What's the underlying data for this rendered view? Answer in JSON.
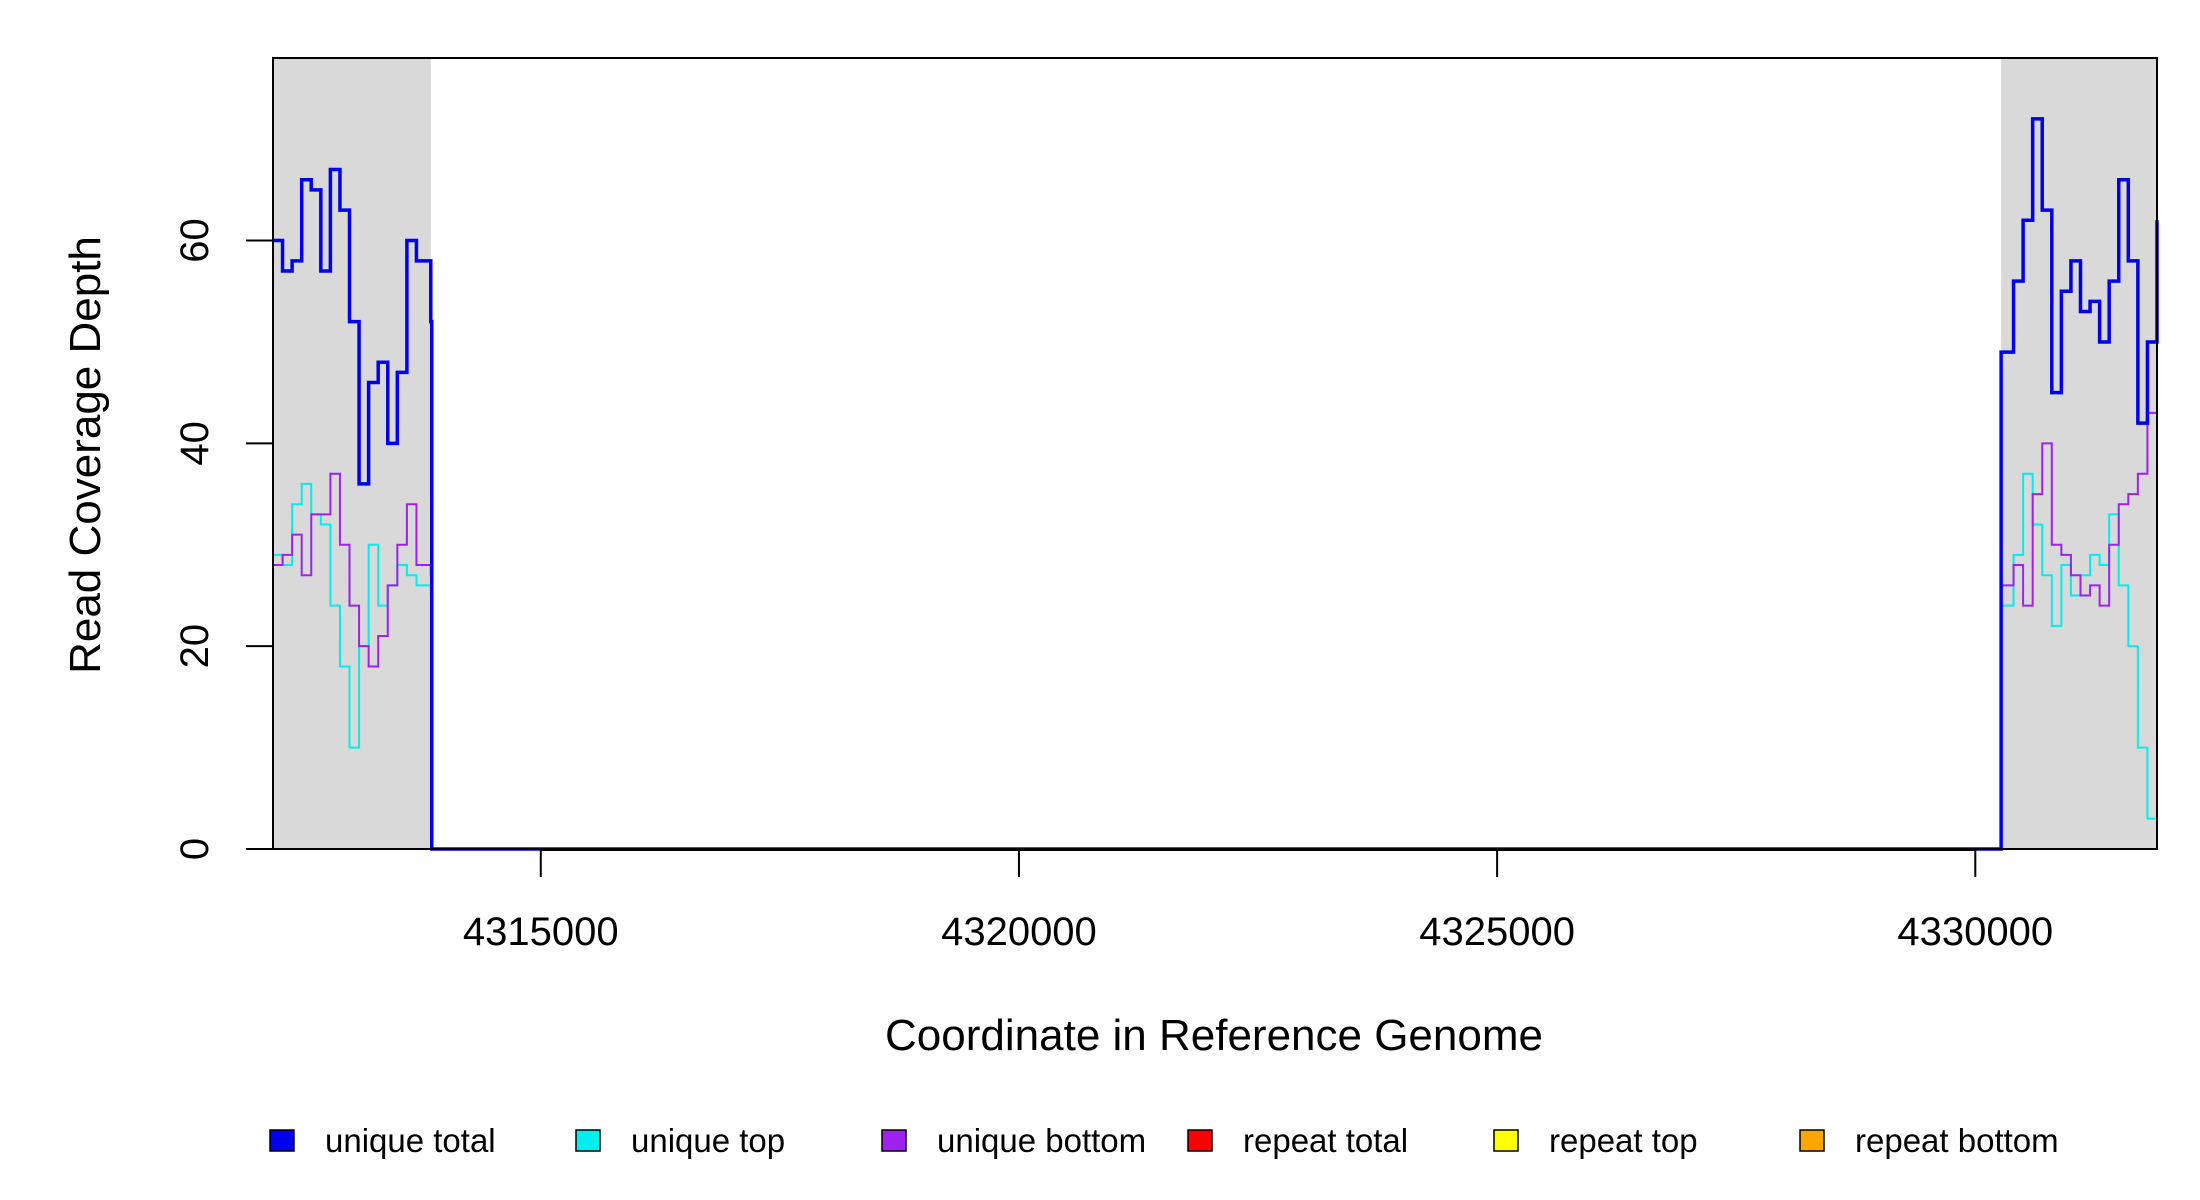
{
  "chart_data": {
    "type": "line",
    "xlabel": "Coordinate in Reference Genome",
    "ylabel": "Read Coverage Depth",
    "xlim": [
      4312200,
      4331900
    ],
    "ylim": [
      0,
      78
    ],
    "x_ticks": [
      4315000,
      4320000,
      4325000,
      4330000
    ],
    "x_tick_labels": [
      "4315000",
      "4320000",
      "4325000",
      "4330000"
    ],
    "y_ticks": [
      0,
      20,
      40,
      60
    ],
    "y_tick_labels": [
      "0",
      "20",
      "40",
      "60"
    ],
    "shaded_regions": [
      [
        4312200,
        4313850
      ],
      [
        4330270,
        4331900
      ]
    ],
    "shade_color": "#d9d9d9",
    "legend_position": "bottom",
    "series": [
      {
        "name": "unique total",
        "color": "#0000ee",
        "x": [
          4312200,
          4312300,
          4312400,
          4312500,
          4312600,
          4312700,
          4312800,
          4312900,
          4313000,
          4313100,
          4313200,
          4313300,
          4313400,
          4313500,
          4313600,
          4313700,
          4313850,
          4313860,
          4330260,
          4330270,
          4330400,
          4330500,
          4330600,
          4330700,
          4330800,
          4330900,
          4331000,
          4331100,
          4331200,
          4331300,
          4331400,
          4331500,
          4331600,
          4331700,
          4331800,
          4331900
        ],
        "y": [
          60,
          57,
          58,
          66,
          65,
          57,
          67,
          63,
          52,
          36,
          46,
          48,
          40,
          47,
          60,
          58,
          52,
          0,
          0,
          49,
          56,
          62,
          72,
          63,
          45,
          55,
          58,
          53,
          54,
          50,
          56,
          66,
          58,
          42,
          50,
          62
        ]
      },
      {
        "name": "unique top",
        "color": "#00eeee",
        "x": [
          4312200,
          4312300,
          4312400,
          4312500,
          4312600,
          4312700,
          4312800,
          4312900,
          4313000,
          4313100,
          4313200,
          4313300,
          4313400,
          4313500,
          4313600,
          4313700,
          4313850,
          4313860,
          4330260,
          4330270,
          4330400,
          4330500,
          4330600,
          4330700,
          4330800,
          4330900,
          4331000,
          4331100,
          4331200,
          4331300,
          4331400,
          4331500,
          4331600,
          4331700,
          4331800,
          4331900
        ],
        "y": [
          29,
          28,
          34,
          36,
          33,
          32,
          24,
          18,
          10,
          20,
          30,
          24,
          26,
          28,
          27,
          26,
          25,
          0,
          0,
          24,
          29,
          37,
          32,
          27,
          22,
          28,
          25,
          27,
          29,
          28,
          33,
          26,
          20,
          10,
          3,
          16
        ]
      },
      {
        "name": "unique bottom",
        "color": "#a020f0",
        "x": [
          4312200,
          4312300,
          4312400,
          4312500,
          4312600,
          4312700,
          4312800,
          4312900,
          4313000,
          4313100,
          4313200,
          4313300,
          4313400,
          4313500,
          4313600,
          4313700,
          4313850,
          4313860,
          4330260,
          4330270,
          4330400,
          4330500,
          4330600,
          4330700,
          4330800,
          4330900,
          4331000,
          4331100,
          4331200,
          4331300,
          4331400,
          4331500,
          4331600,
          4331700,
          4331800,
          4331900
        ],
        "y": [
          28,
          29,
          31,
          27,
          33,
          33,
          37,
          30,
          24,
          20,
          18,
          21,
          26,
          30,
          34,
          28,
          27,
          0,
          0,
          26,
          28,
          24,
          35,
          40,
          30,
          29,
          27,
          25,
          26,
          24,
          30,
          34,
          35,
          37,
          43,
          45
        ]
      },
      {
        "name": "repeat total",
        "color": "#ff0000",
        "x": [
          4312200,
          4331900
        ],
        "y": [
          0,
          0
        ]
      },
      {
        "name": "repeat top",
        "color": "#ffff00",
        "x": [
          4312200,
          4331900
        ],
        "y": [
          0,
          0
        ]
      },
      {
        "name": "repeat bottom",
        "color": "#ffa500",
        "x": [
          4312200,
          4331900
        ],
        "y": [
          0,
          0
        ]
      }
    ]
  }
}
